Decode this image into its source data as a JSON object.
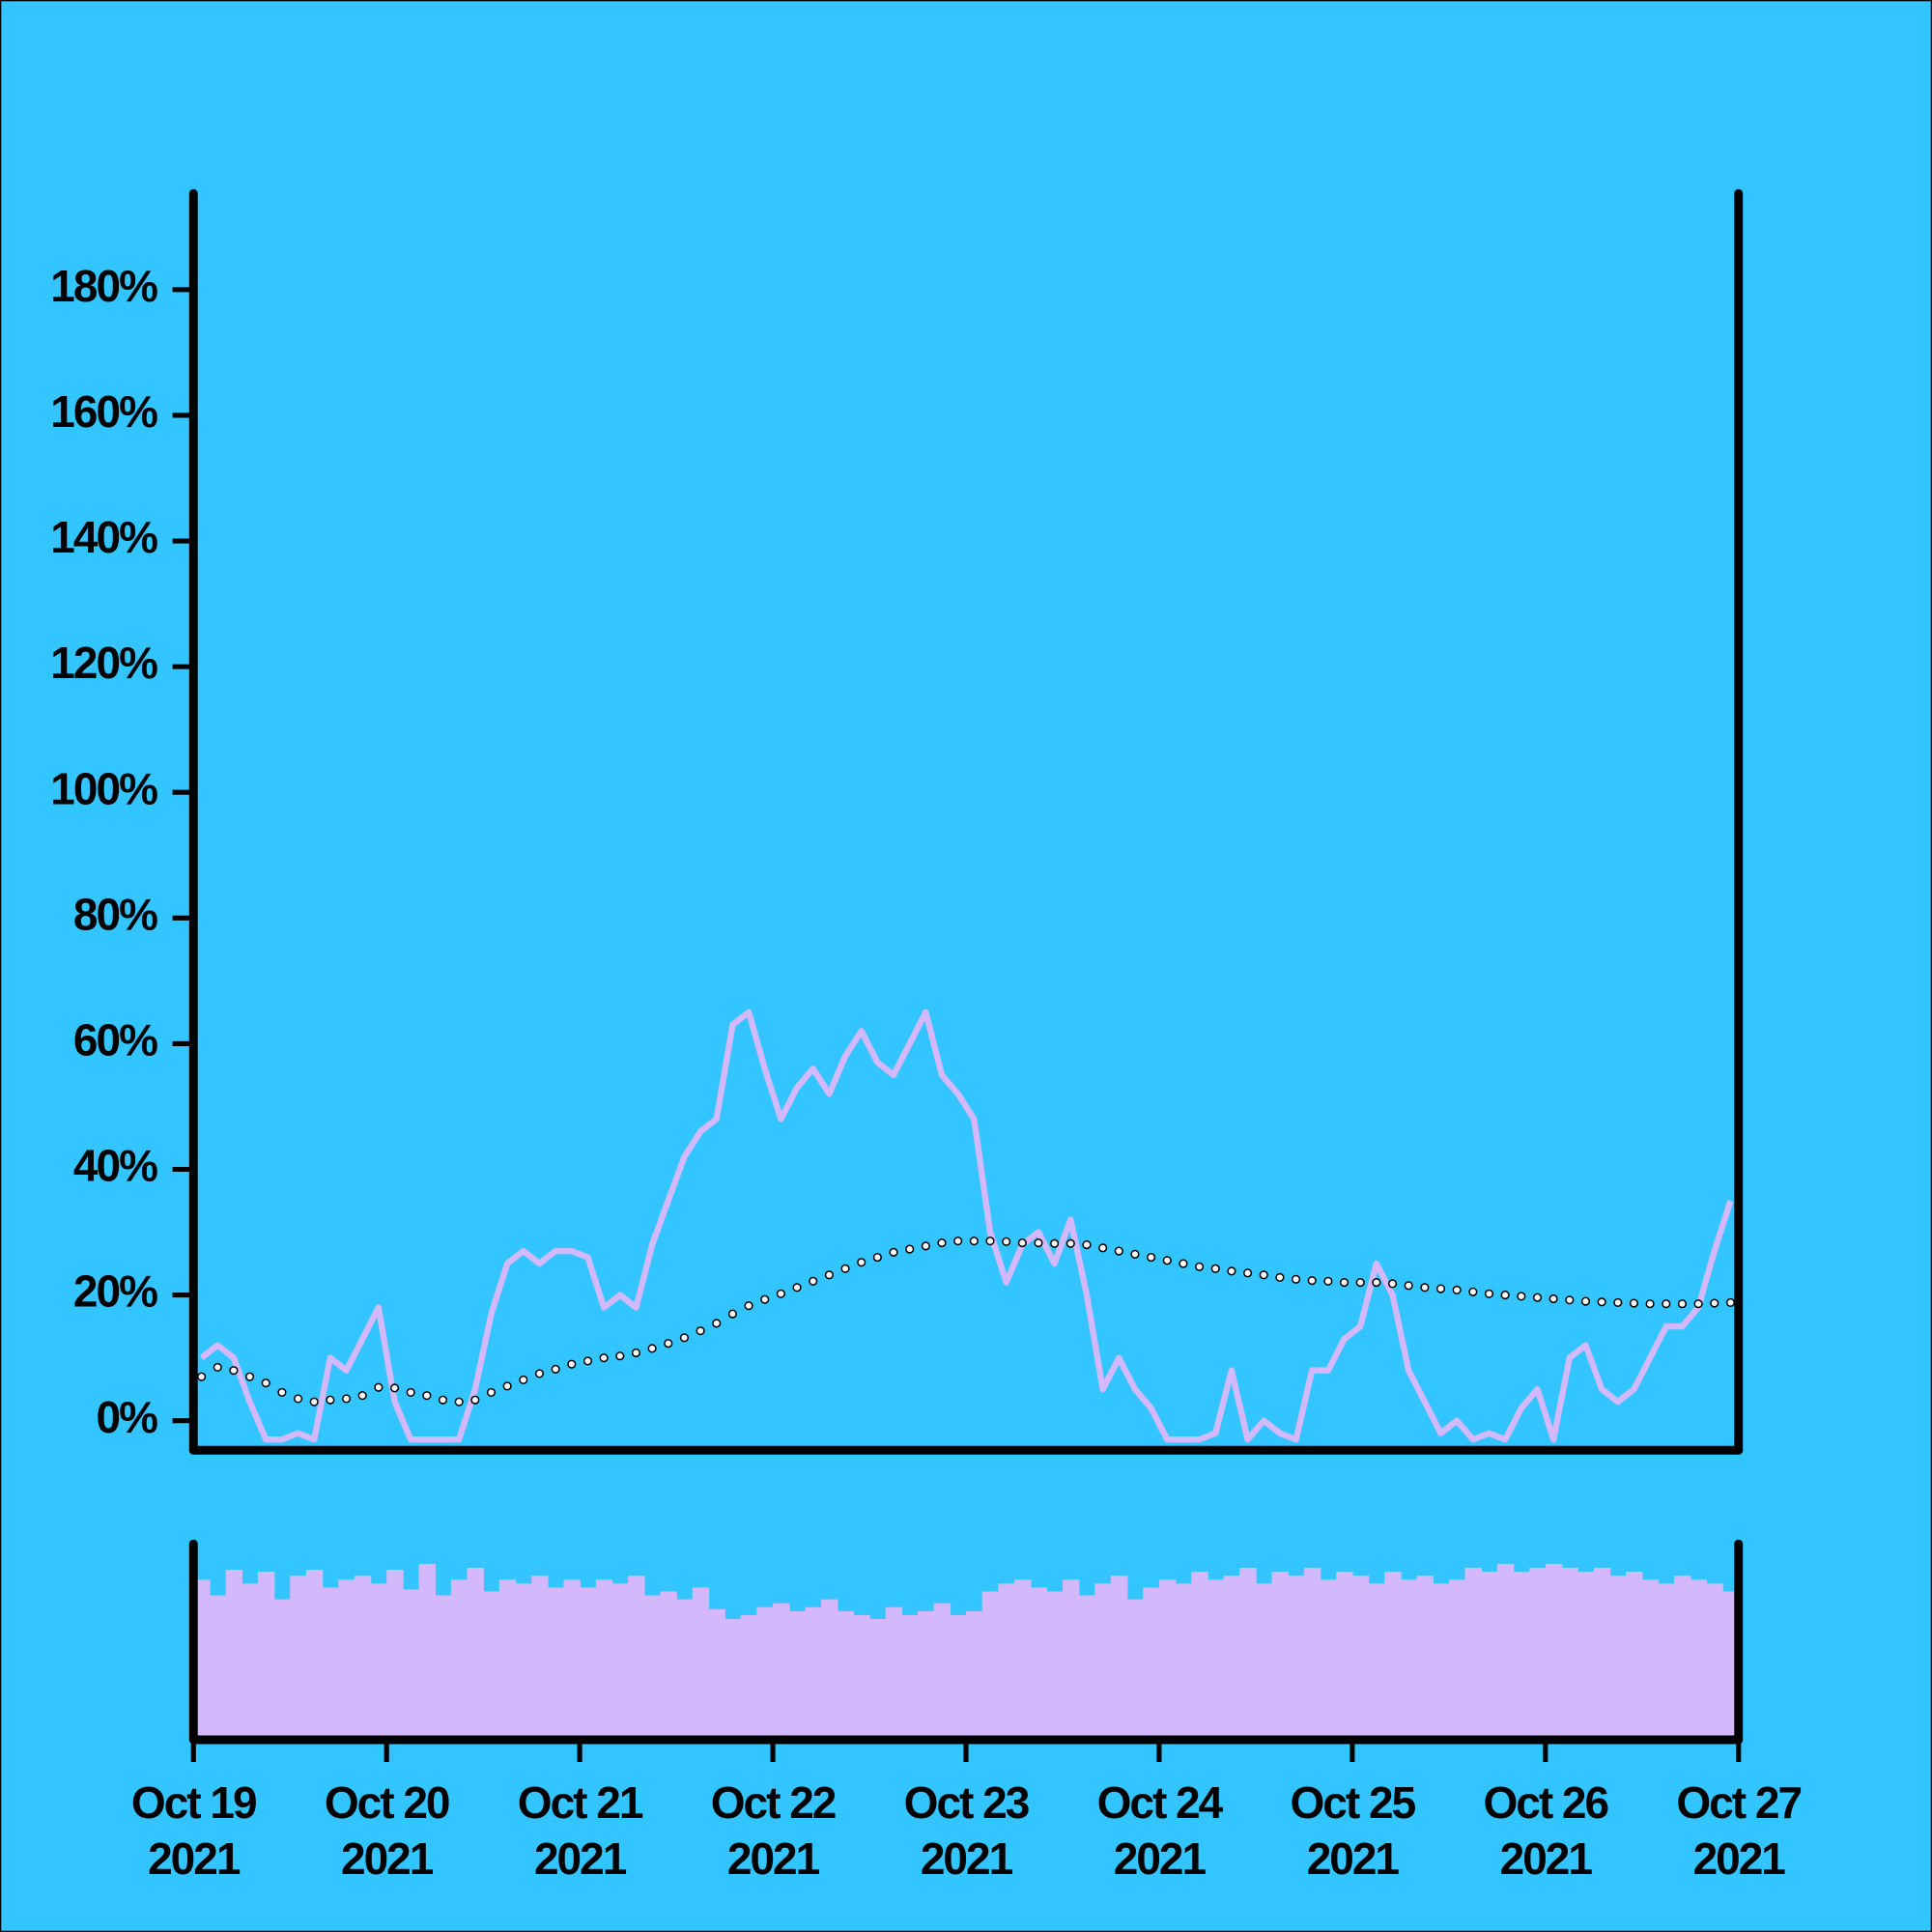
{
  "chart_data": [
    {
      "type": "line",
      "x": [
        "2021-10-19T01:00",
        "2021-10-19T03:00",
        "2021-10-19T05:00",
        "2021-10-19T07:00",
        "2021-10-19T09:00",
        "2021-10-19T11:00",
        "2021-10-19T13:00",
        "2021-10-19T15:00",
        "2021-10-19T17:00",
        "2021-10-19T19:00",
        "2021-10-19T21:00",
        "2021-10-19T23:00",
        "2021-10-20T01:00",
        "2021-10-20T03:00",
        "2021-10-20T05:00",
        "2021-10-20T07:00",
        "2021-10-20T09:00",
        "2021-10-20T11:00",
        "2021-10-20T13:00",
        "2021-10-20T15:00",
        "2021-10-20T17:00",
        "2021-10-20T19:00",
        "2021-10-20T21:00",
        "2021-10-20T23:00",
        "2021-10-21T01:00",
        "2021-10-21T03:00",
        "2021-10-21T05:00",
        "2021-10-21T07:00",
        "2021-10-21T09:00",
        "2021-10-21T11:00",
        "2021-10-21T13:00",
        "2021-10-21T15:00",
        "2021-10-21T17:00",
        "2021-10-21T19:00",
        "2021-10-21T21:00",
        "2021-10-21T23:00",
        "2021-10-22T01:00",
        "2021-10-22T03:00",
        "2021-10-22T05:00",
        "2021-10-22T07:00",
        "2021-10-22T09:00",
        "2021-10-22T11:00",
        "2021-10-22T13:00",
        "2021-10-22T15:00",
        "2021-10-22T17:00",
        "2021-10-22T19:00",
        "2021-10-22T21:00",
        "2021-10-22T23:00",
        "2021-10-23T01:00",
        "2021-10-23T03:00",
        "2021-10-23T05:00",
        "2021-10-23T07:00",
        "2021-10-23T09:00",
        "2021-10-23T11:00",
        "2021-10-23T13:00",
        "2021-10-23T15:00",
        "2021-10-23T17:00",
        "2021-10-23T19:00",
        "2021-10-23T21:00",
        "2021-10-23T23:00",
        "2021-10-24T01:00",
        "2021-10-24T03:00",
        "2021-10-24T05:00",
        "2021-10-24T07:00",
        "2021-10-24T09:00",
        "2021-10-24T11:00",
        "2021-10-24T13:00",
        "2021-10-24T15:00",
        "2021-10-24T17:00",
        "2021-10-24T19:00",
        "2021-10-24T21:00",
        "2021-10-24T23:00",
        "2021-10-25T01:00",
        "2021-10-25T03:00",
        "2021-10-25T05:00",
        "2021-10-25T07:00",
        "2021-10-25T09:00",
        "2021-10-25T11:00",
        "2021-10-25T13:00",
        "2021-10-25T15:00",
        "2021-10-25T17:00",
        "2021-10-25T19:00",
        "2021-10-25T21:00",
        "2021-10-25T23:00",
        "2021-10-26T01:00",
        "2021-10-26T03:00",
        "2021-10-26T05:00",
        "2021-10-26T07:00",
        "2021-10-26T09:00",
        "2021-10-26T11:00",
        "2021-10-26T13:00",
        "2021-10-26T15:00",
        "2021-10-26T17:00",
        "2021-10-26T19:00",
        "2021-10-26T21:00",
        "2021-10-26T23:00"
      ],
      "series": [
        {
          "color": "#d4b8fc",
          "style": "solid",
          "values": [
            10,
            12,
            10,
            3,
            -3,
            -3,
            -2,
            -3,
            10,
            8,
            13,
            18,
            3,
            -3,
            -3,
            -3,
            -3,
            5,
            17,
            25,
            27,
            25,
            27,
            27,
            26,
            18,
            20,
            18,
            28,
            35,
            42,
            46,
            48,
            63,
            65,
            56,
            48,
            53,
            56,
            52,
            58,
            62,
            57,
            55,
            60,
            65,
            55,
            52,
            48,
            30,
            22,
            28,
            30,
            25,
            32,
            20,
            5,
            10,
            5,
            2,
            -3,
            -3,
            -3,
            -2,
            8,
            -3,
            0,
            -2,
            -3,
            8,
            8,
            13,
            15,
            25,
            20,
            8,
            3,
            -2,
            0,
            -3,
            -2,
            -3,
            2,
            5,
            -3,
            10,
            12,
            5,
            3,
            5,
            10,
            15,
            15,
            18,
            27,
            35
          ]
        },
        {
          "color": "#000000",
          "style": "markers",
          "marker_fill": "#ffffff",
          "values": [
            7,
            8.5,
            8,
            7,
            6,
            4.5,
            3.5,
            3,
            3.3,
            3.5,
            4,
            5.3,
            5.2,
            4.5,
            4,
            3.3,
            3,
            3.3,
            4.5,
            5.5,
            6.5,
            7.5,
            8.2,
            9,
            9.5,
            10,
            10.3,
            10.8,
            11.5,
            12.3,
            13.2,
            14.3,
            15.5,
            17,
            18.3,
            19.3,
            20.2,
            21.2,
            22.2,
            23.2,
            24.2,
            25.2,
            26,
            26.8,
            27.3,
            27.8,
            28.3,
            28.6,
            28.6,
            28.6,
            28.5,
            28.3,
            28.3,
            28.2,
            28.2,
            28,
            27.5,
            27,
            26.5,
            26,
            25.5,
            25,
            24.5,
            24.2,
            23.8,
            23.5,
            23.2,
            22.8,
            22.5,
            22.3,
            22.2,
            22,
            22,
            22,
            21.8,
            21.5,
            21.2,
            21,
            20.8,
            20.5,
            20.2,
            20,
            19.8,
            19.6,
            19.4,
            19.2,
            19,
            18.9,
            18.8,
            18.7,
            18.6,
            18.6,
            18.6,
            18.6,
            18.7,
            18.8
          ]
        }
      ],
      "xlim": [
        "2021-10-19T00:00",
        "2021-10-27T00:00"
      ],
      "ylim": [
        -4.7,
        195.7
      ],
      "yticks": [
        {
          "value": 0,
          "label": "0%"
        },
        {
          "value": 20,
          "label": "20%"
        },
        {
          "value": 40,
          "label": "40%"
        },
        {
          "value": 60,
          "label": "60%"
        },
        {
          "value": 80,
          "label": "80%"
        },
        {
          "value": 100,
          "label": "100%"
        },
        {
          "value": 120,
          "label": "120%"
        },
        {
          "value": 140,
          "label": "140%"
        },
        {
          "value": 160,
          "label": "160%"
        },
        {
          "value": 180,
          "label": "180%"
        }
      ]
    },
    {
      "type": "bar",
      "color": "#d4b8fc",
      "values": [
        80,
        72,
        85,
        78,
        84,
        70,
        82,
        85,
        76,
        80,
        82,
        78,
        85,
        75,
        88,
        72,
        80,
        86,
        74,
        80,
        78,
        82,
        76,
        80,
        76,
        80,
        78,
        82,
        72,
        74,
        70,
        76,
        65,
        60,
        62,
        66,
        68,
        64,
        66,
        70,
        64,
        62,
        60,
        66,
        62,
        64,
        68,
        62,
        64,
        74,
        78,
        80,
        76,
        74,
        80,
        72,
        78,
        82,
        70,
        76,
        80,
        78,
        84,
        80,
        82,
        86,
        78,
        84,
        82,
        86,
        80,
        84,
        82,
        78,
        84,
        80,
        82,
        78,
        80,
        86,
        84,
        88,
        84,
        86,
        88,
        86,
        84,
        86,
        82,
        84,
        80,
        78,
        82,
        80,
        78,
        74
      ],
      "ylim": [
        0,
        100
      ],
      "xticks": [
        {
          "value": "2021-10-19T00:00",
          "label": "Oct 19\n2021"
        },
        {
          "value": "2021-10-20T00:00",
          "label": "Oct 20\n2021"
        },
        {
          "value": "2021-10-21T00:00",
          "label": "Oct 21\n2021"
        },
        {
          "value": "2021-10-22T00:00",
          "label": "Oct 22\n2021"
        },
        {
          "value": "2021-10-23T00:00",
          "label": "Oct 23\n2021"
        },
        {
          "value": "2021-10-24T00:00",
          "label": "Oct 24\n2021"
        },
        {
          "value": "2021-10-25T00:00",
          "label": "Oct 25\n2021"
        },
        {
          "value": "2021-10-26T00:00",
          "label": "Oct 26\n2021"
        },
        {
          "value": "2021-10-27T00:00",
          "label": "Oct 27\n2021"
        }
      ]
    }
  ]
}
